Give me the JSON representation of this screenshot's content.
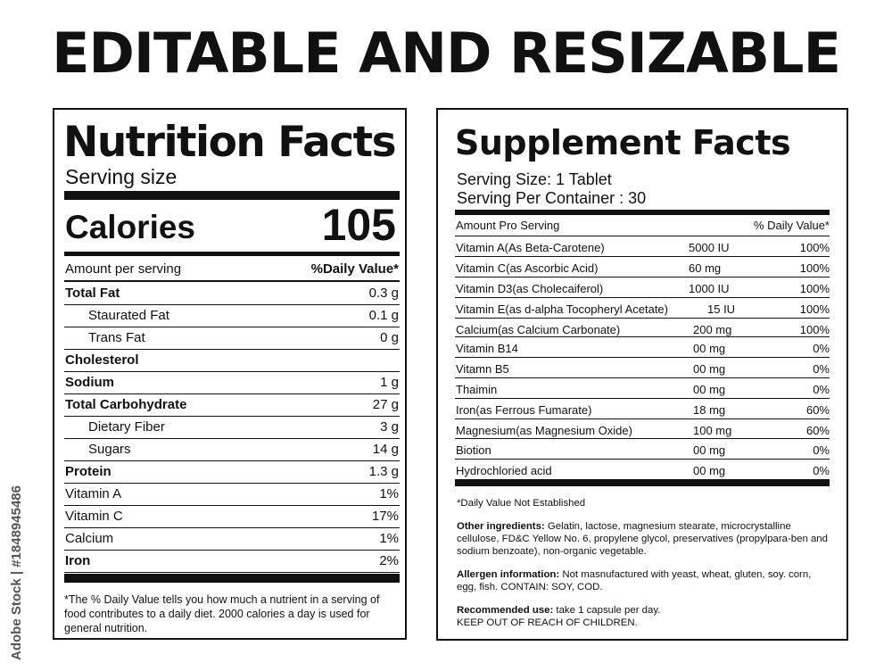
{
  "headline": "EDITABLE AND RESIZABLE",
  "watermark": "Adobe Stock | #1848945486",
  "nutrition": {
    "title": "Nutrition Facts",
    "serving_size": "Serving size",
    "calories_label": "Calories",
    "calories_value": "105",
    "amount_label": "Amount per serving",
    "daily_value_label": "%Daily Value*",
    "rows": [
      {
        "name": "Total Fat",
        "value": "0.3 g",
        "bold": true
      },
      {
        "name": "Staurated Fat",
        "value": "0.1 g",
        "indent": true
      },
      {
        "name": "Trans Fat",
        "value": "0 g",
        "indent": true
      },
      {
        "name": "Cholesterol",
        "value": "",
        "bold": true
      },
      {
        "name": "Sodium",
        "value": "1 g",
        "bold": true
      },
      {
        "name": "Total Carbohydrate",
        "value": "27 g",
        "bold": true
      },
      {
        "name": "Dietary Fiber",
        "value": "3 g",
        "indent": true
      },
      {
        "name": "Sugars",
        "value": "14 g",
        "indent": true
      },
      {
        "name": "Protein",
        "value": "1.3 g",
        "bold": true
      },
      {
        "name": "Vitamin A",
        "value": "1%"
      },
      {
        "name": "Vitamin C",
        "value": "17%"
      },
      {
        "name": "Calcium",
        "value": "1%"
      },
      {
        "name": "Iron",
        "value": "2%",
        "bold": true
      }
    ],
    "footnote": "*The % Daily Value tells you how much a nutrient in a serving of food contributes to a daily diet. 2000 calories a day is used for general nutrition."
  },
  "supplement": {
    "title": "Supplement Facts",
    "serving_size": "Serving Size: 1 Tablet",
    "serving_per": "Serving Per  Container : 30",
    "amount_label": "Amount Pro Serving",
    "daily_value_label": "% Daily Value*",
    "rows": [
      {
        "name": "Vitamin A(As Beta-Carotene)",
        "amount": "5000 IU",
        "dv": "100%"
      },
      {
        "name": "Vitamin C(as Ascorbic Acid)",
        "amount": "60 mg",
        "dv": "100%"
      },
      {
        "name": "Vitamin D3(as Cholecaiferol)",
        "amount": "1000 IU",
        "dv": "100%"
      },
      {
        "name": "Vitamin E(as d-alpha Tocopheryl Acetate)",
        "amount": "15 IU",
        "dv": "100%"
      },
      {
        "name": "Calcium(as Calcium Carbonate)",
        "amount": "200 mg",
        "dv": "100%"
      },
      {
        "name": "Vitamin B14",
        "amount": "00 mg",
        "dv": "0%"
      },
      {
        "name": "Vitamn B5",
        "amount": "00 mg",
        "dv": "0%"
      },
      {
        "name": "Thaimin",
        "amount": "00 mg",
        "dv": "0%"
      },
      {
        "name": "Iron(as Ferrous Fumarate)",
        "amount": "18 mg",
        "dv": "60%"
      },
      {
        "name": "Magnesium(as Magnesium Oxide)",
        "amount": "100 mg",
        "dv": "60%"
      },
      {
        "name": "Biotion",
        "amount": "00 mg",
        "dv": "0%"
      },
      {
        "name": "Hydrochloried  acid",
        "amount": "00 mg",
        "dv": "0%"
      }
    ],
    "dv_note": "*Daily Value Not Established",
    "other_label": "Other ingredients:",
    "other_text": " Gelatin, lactose, magnesium stearate, microcrystalline cellulose, FD&C Yellow No. 6, propylene glycol, preservatives (propylpara-ben and sodium benzoate), non-organic vegetable.",
    "allergen_label": "Allergen information:",
    "allergen_text": " Not masnufactured with yeast, wheat, gluten, soy. corn, egg, fish. CONTAIN: SOY, COD.",
    "usage_label": "Recommended use:",
    "usage_text": " take 1 capsule per day.",
    "warning": "KEEP OUT OF REACH OF CHILDREN."
  }
}
